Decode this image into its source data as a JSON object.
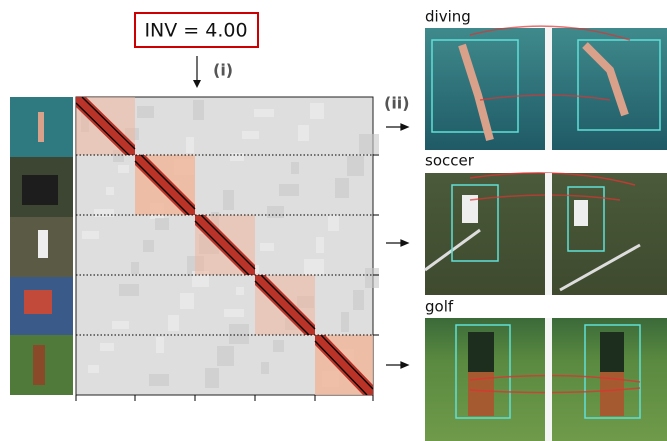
{
  "header": {
    "formula": "INV = 4.00",
    "step_i": "(i)",
    "step_ii": "(ii)"
  },
  "panels": [
    {
      "label": "diving"
    },
    {
      "label": "soccer"
    },
    {
      "label": "golf"
    }
  ]
}
